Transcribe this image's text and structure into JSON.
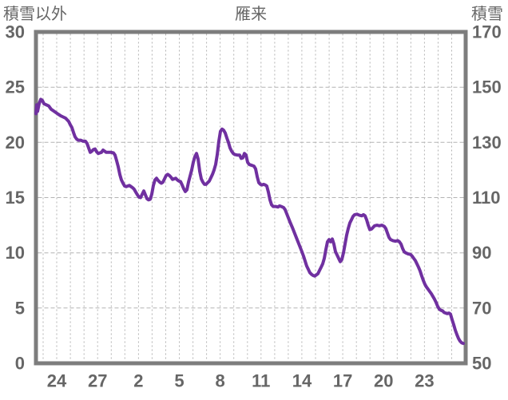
{
  "header": {
    "left_axis_title": "積雪以外",
    "chart_title": "雁来",
    "right_axis_title": "積雪"
  },
  "chart_data": {
    "type": "line",
    "title": "雁来",
    "left_axis": {
      "label": "積雪以外",
      "min": 0,
      "max": 30,
      "ticks": [
        "0",
        "5",
        "10",
        "15",
        "20",
        "25",
        "30"
      ]
    },
    "right_axis": {
      "label": "積雪",
      "min": 50,
      "max": 170,
      "ticks": [
        "50",
        "70",
        "90",
        "110",
        "130",
        "150",
        "170"
      ],
      "relation": "right_value = 50 + 4 * left_value (shared gridlines)"
    },
    "x_axis": {
      "tick_labels": [
        "24",
        "27",
        "2",
        "5",
        "8",
        "11",
        "14",
        "17",
        "20",
        "23"
      ],
      "note": "day-of-month labels every 3 days; dashed vertical gridline every day"
    },
    "grid": {
      "horizontal_dashed_at": [
        5,
        10,
        15,
        20,
        25
      ],
      "vertical_daily": true
    },
    "colors": {
      "line": "#7030A0",
      "border": "#7d7d7d",
      "gridline": "#b3b3b3",
      "text": "#666666",
      "background": "#ffffff"
    },
    "series": [
      {
        "name": "雁来 積雪以外",
        "color": "#7030A0",
        "points_format": "[x_px, left_axis_value]",
        "points": [
          [
            45,
            22.6
          ],
          [
            46,
            23.4
          ],
          [
            47,
            22.8
          ],
          [
            49,
            23.5
          ],
          [
            51,
            23.9
          ],
          [
            53,
            23.8
          ],
          [
            55,
            23.5
          ],
          [
            58,
            23.4
          ],
          [
            61,
            23.3
          ],
          [
            64,
            23.0
          ],
          [
            67,
            22.85
          ],
          [
            70,
            22.7
          ],
          [
            73,
            22.55
          ],
          [
            76,
            22.4
          ],
          [
            79,
            22.3
          ],
          [
            82,
            22.2
          ],
          [
            84,
            22.05
          ],
          [
            86,
            21.9
          ],
          [
            88,
            21.6
          ],
          [
            90,
            21.35
          ],
          [
            92,
            20.9
          ],
          [
            94,
            20.5
          ],
          [
            96,
            20.3
          ],
          [
            98,
            20.2
          ],
          [
            101,
            20.2
          ],
          [
            104,
            20.1
          ],
          [
            107,
            20.1
          ],
          [
            109,
            19.9
          ],
          [
            111,
            19.5
          ],
          [
            113,
            19.1
          ],
          [
            115,
            19.2
          ],
          [
            117,
            19.35
          ],
          [
            119,
            19.4
          ],
          [
            121,
            19.15
          ],
          [
            123,
            19.0
          ],
          [
            125,
            19.05
          ],
          [
            127,
            19.1
          ],
          [
            129,
            19.3
          ],
          [
            131,
            19.2
          ],
          [
            133,
            19.1
          ],
          [
            136,
            19.1
          ],
          [
            139,
            19.1
          ],
          [
            142,
            19.05
          ],
          [
            144,
            18.85
          ],
          [
            146,
            18.35
          ],
          [
            148,
            17.8
          ],
          [
            150,
            17.1
          ],
          [
            152,
            16.6
          ],
          [
            154,
            16.3
          ],
          [
            156,
            16.05
          ],
          [
            158,
            16.0
          ],
          [
            160,
            16.05
          ],
          [
            162,
            16.1
          ],
          [
            164,
            16.0
          ],
          [
            166,
            15.9
          ],
          [
            168,
            15.75
          ],
          [
            170,
            15.5
          ],
          [
            172,
            15.25
          ],
          [
            174,
            15.05
          ],
          [
            176,
            15.0
          ],
          [
            178,
            15.3
          ],
          [
            180,
            15.6
          ],
          [
            182,
            15.25
          ],
          [
            184,
            14.9
          ],
          [
            186,
            14.8
          ],
          [
            188,
            14.85
          ],
          [
            190,
            15.3
          ],
          [
            192,
            16.1
          ],
          [
            194,
            16.6
          ],
          [
            196,
            16.75
          ],
          [
            198,
            16.55
          ],
          [
            200,
            16.4
          ],
          [
            202,
            16.3
          ],
          [
            204,
            16.4
          ],
          [
            206,
            16.7
          ],
          [
            208,
            17.0
          ],
          [
            210,
            17.1
          ],
          [
            212,
            17.0
          ],
          [
            214,
            16.85
          ],
          [
            216,
            16.65
          ],
          [
            218,
            16.7
          ],
          [
            220,
            16.75
          ],
          [
            222,
            16.6
          ],
          [
            224,
            16.5
          ],
          [
            226,
            16.45
          ],
          [
            228,
            16.15
          ],
          [
            230,
            15.8
          ],
          [
            232,
            15.55
          ],
          [
            234,
            15.7
          ],
          [
            236,
            16.4
          ],
          [
            238,
            16.95
          ],
          [
            240,
            17.5
          ],
          [
            242,
            18.2
          ],
          [
            244,
            18.7
          ],
          [
            246,
            19.0
          ],
          [
            248,
            18.5
          ],
          [
            250,
            17.4
          ],
          [
            252,
            16.7
          ],
          [
            254,
            16.4
          ],
          [
            256,
            16.2
          ],
          [
            258,
            16.2
          ],
          [
            260,
            16.35
          ],
          [
            262,
            16.5
          ],
          [
            264,
            16.8
          ],
          [
            266,
            17.1
          ],
          [
            268,
            17.5
          ],
          [
            270,
            18.0
          ],
          [
            272,
            18.9
          ],
          [
            274,
            20.1
          ],
          [
            276,
            21.0
          ],
          [
            278,
            21.2
          ],
          [
            280,
            21.1
          ],
          [
            282,
            20.85
          ],
          [
            284,
            20.4
          ],
          [
            286,
            20.0
          ],
          [
            288,
            19.5
          ],
          [
            290,
            19.2
          ],
          [
            292,
            19.0
          ],
          [
            294,
            18.9
          ],
          [
            297,
            18.85
          ],
          [
            300,
            18.85
          ],
          [
            302,
            18.55
          ],
          [
            304,
            18.6
          ],
          [
            306,
            19.0
          ],
          [
            308,
            18.85
          ],
          [
            310,
            18.2
          ],
          [
            312,
            18.0
          ],
          [
            314,
            17.95
          ],
          [
            316,
            17.9
          ],
          [
            318,
            17.85
          ],
          [
            320,
            17.6
          ],
          [
            322,
            16.9
          ],
          [
            324,
            16.35
          ],
          [
            326,
            16.2
          ],
          [
            328,
            16.15
          ],
          [
            330,
            16.2
          ],
          [
            332,
            16.15
          ],
          [
            334,
            16.05
          ],
          [
            336,
            15.5
          ],
          [
            338,
            14.8
          ],
          [
            340,
            14.35
          ],
          [
            342,
            14.2
          ],
          [
            345,
            14.2
          ],
          [
            348,
            14.15
          ],
          [
            350,
            14.25
          ],
          [
            352,
            14.2
          ],
          [
            355,
            14.1
          ],
          [
            357,
            13.9
          ],
          [
            360,
            13.35
          ],
          [
            363,
            12.8
          ],
          [
            366,
            12.3
          ],
          [
            369,
            11.75
          ],
          [
            372,
            11.2
          ],
          [
            375,
            10.65
          ],
          [
            378,
            10.1
          ],
          [
            380,
            9.7
          ],
          [
            382,
            9.25
          ],
          [
            384,
            8.8
          ],
          [
            386,
            8.5
          ],
          [
            388,
            8.2
          ],
          [
            390,
            8.05
          ],
          [
            392,
            7.95
          ],
          [
            394,
            7.9
          ],
          [
            396,
            8.0
          ],
          [
            398,
            8.1
          ],
          [
            400,
            8.4
          ],
          [
            402,
            8.7
          ],
          [
            404,
            9.0
          ],
          [
            406,
            9.5
          ],
          [
            408,
            10.3
          ],
          [
            410,
            11.0
          ],
          [
            412,
            11.2
          ],
          [
            414,
            11.0
          ],
          [
            416,
            11.25
          ],
          [
            418,
            10.8
          ],
          [
            420,
            10.1
          ],
          [
            422,
            9.8
          ],
          [
            424,
            9.5
          ],
          [
            426,
            9.2
          ],
          [
            428,
            9.4
          ],
          [
            430,
            10.0
          ],
          [
            432,
            10.8
          ],
          [
            434,
            11.6
          ],
          [
            436,
            12.2
          ],
          [
            438,
            12.7
          ],
          [
            440,
            13.0
          ],
          [
            442,
            13.3
          ],
          [
            444,
            13.45
          ],
          [
            447,
            13.5
          ],
          [
            450,
            13.4
          ],
          [
            453,
            13.35
          ],
          [
            455,
            13.45
          ],
          [
            457,
            13.35
          ],
          [
            459,
            13.0
          ],
          [
            461,
            12.5
          ],
          [
            463,
            12.1
          ],
          [
            465,
            12.15
          ],
          [
            467,
            12.3
          ],
          [
            469,
            12.45
          ],
          [
            472,
            12.5
          ],
          [
            475,
            12.45
          ],
          [
            478,
            12.5
          ],
          [
            481,
            12.4
          ],
          [
            483,
            12.2
          ],
          [
            485,
            11.8
          ],
          [
            487,
            11.4
          ],
          [
            489,
            11.2
          ],
          [
            492,
            11.1
          ],
          [
            495,
            11.05
          ],
          [
            498,
            11.1
          ],
          [
            500,
            11.0
          ],
          [
            502,
            10.8
          ],
          [
            504,
            10.4
          ],
          [
            506,
            10.1
          ],
          [
            508,
            10.0
          ],
          [
            511,
            9.9
          ],
          [
            514,
            9.85
          ],
          [
            516,
            9.7
          ],
          [
            518,
            9.5
          ],
          [
            520,
            9.3
          ],
          [
            522,
            9.0
          ],
          [
            524,
            8.7
          ],
          [
            526,
            8.35
          ],
          [
            528,
            7.9
          ],
          [
            530,
            7.5
          ],
          [
            532,
            7.15
          ],
          [
            534,
            6.9
          ],
          [
            536,
            6.7
          ],
          [
            538,
            6.5
          ],
          [
            540,
            6.3
          ],
          [
            542,
            6.05
          ],
          [
            544,
            5.8
          ],
          [
            546,
            5.5
          ],
          [
            548,
            5.15
          ],
          [
            550,
            4.9
          ],
          [
            552,
            4.8
          ],
          [
            554,
            4.75
          ],
          [
            556,
            4.6
          ],
          [
            558,
            4.55
          ],
          [
            560,
            4.5
          ],
          [
            562,
            4.55
          ],
          [
            564,
            4.45
          ],
          [
            566,
            3.95
          ],
          [
            568,
            3.5
          ],
          [
            570,
            3.0
          ],
          [
            572,
            2.6
          ],
          [
            574,
            2.25
          ],
          [
            576,
            2.0
          ],
          [
            578,
            1.85
          ],
          [
            580,
            1.8
          ]
        ]
      }
    ]
  }
}
